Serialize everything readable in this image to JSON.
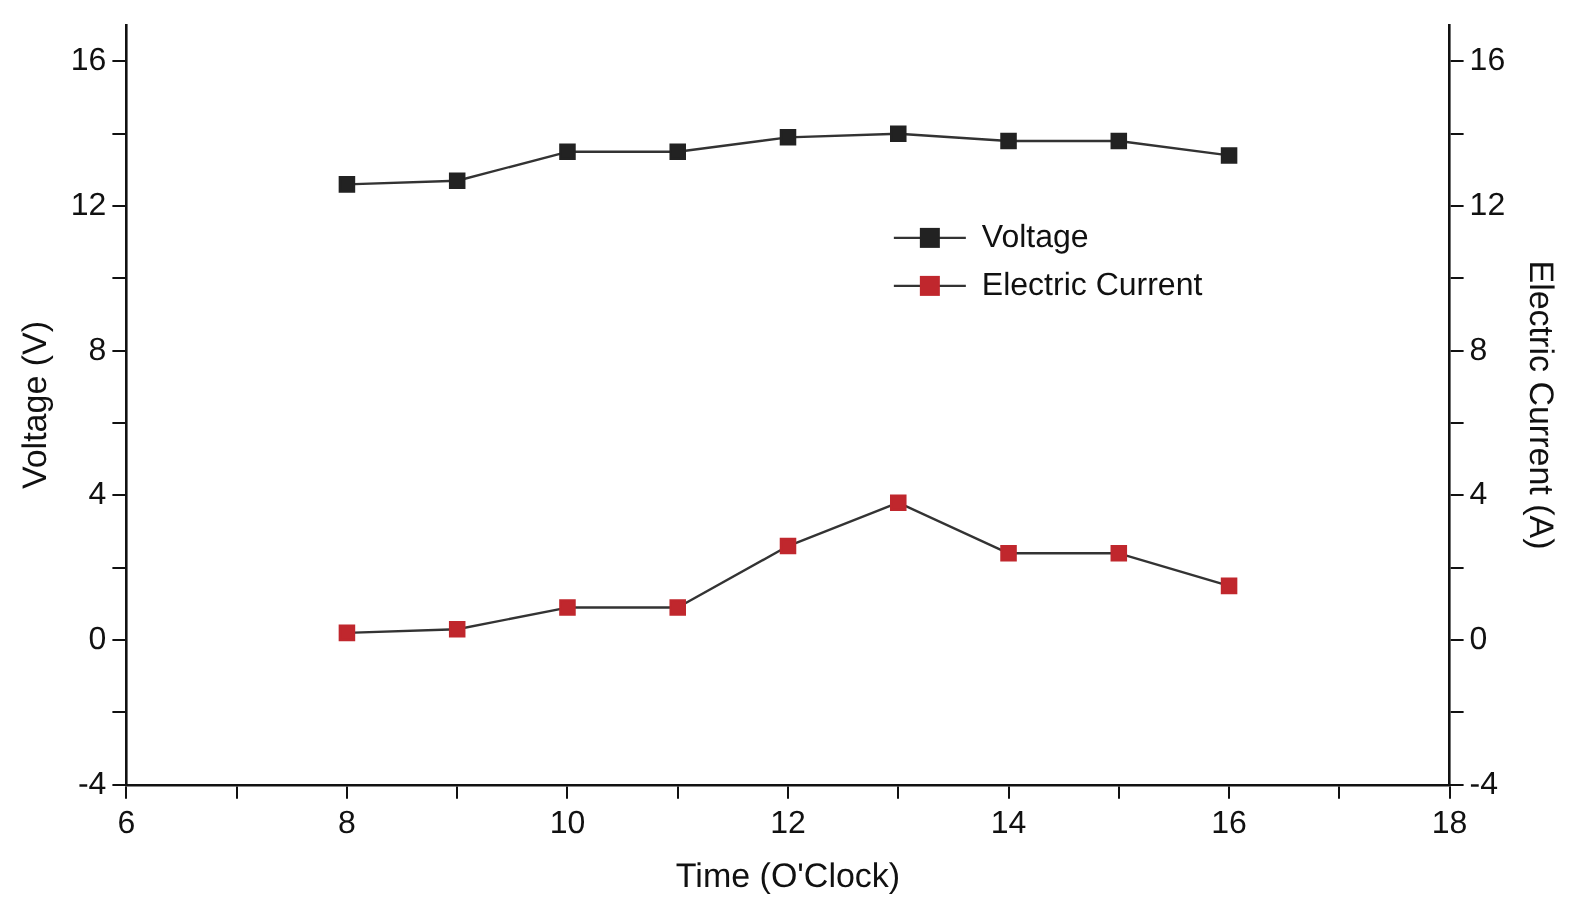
{
  "chart_data": {
    "type": "line",
    "xlabel": "Time (O'Clock)",
    "ylabel": "Voltage (V)",
    "y2label": "Electric Current (A)",
    "x": [
      8,
      9,
      10,
      11,
      12,
      13,
      14,
      15,
      16
    ],
    "series": [
      {
        "name": "Voltage",
        "color": "#222222",
        "values": [
          12.6,
          12.7,
          13.5,
          13.5,
          13.9,
          14.0,
          13.8,
          13.8,
          13.4
        ]
      },
      {
        "name": "Electric Current",
        "color": "#c0272d",
        "axis": "y2",
        "values": [
          0.2,
          0.3,
          0.9,
          0.9,
          2.6,
          3.8,
          2.4,
          2.4,
          1.5
        ]
      }
    ],
    "xlim": [
      6,
      18
    ],
    "xticks": [
      6,
      {
        "value": 7,
        "label": null
      },
      8,
      {
        "value": 9,
        "label": null
      },
      10,
      {
        "value": 11,
        "label": null
      },
      12,
      {
        "value": 13,
        "label": null
      },
      14,
      {
        "value": 15,
        "label": null
      },
      16,
      {
        "value": 17,
        "label": null
      },
      18
    ],
    "ylim": [
      -4,
      17
    ],
    "yticks": [
      -4,
      {
        "value": -2,
        "label": null
      },
      0,
      {
        "value": 2,
        "label": null
      },
      4,
      {
        "value": 6,
        "label": null
      },
      8,
      {
        "value": 10,
        "label": null
      },
      12,
      {
        "value": 14,
        "label": null
      },
      16
    ],
    "y2lim": [
      -4,
      17
    ],
    "y2ticks": [
      -4,
      {
        "value": -2,
        "label": null
      },
      0,
      {
        "value": 2,
        "label": null
      },
      4,
      {
        "value": 6,
        "label": null
      },
      8,
      {
        "value": 10,
        "label": null
      },
      12,
      {
        "value": 14,
        "label": null
      },
      16
    ],
    "marker": "square",
    "line_style": "solid",
    "grid": false,
    "legend": "top right"
  }
}
